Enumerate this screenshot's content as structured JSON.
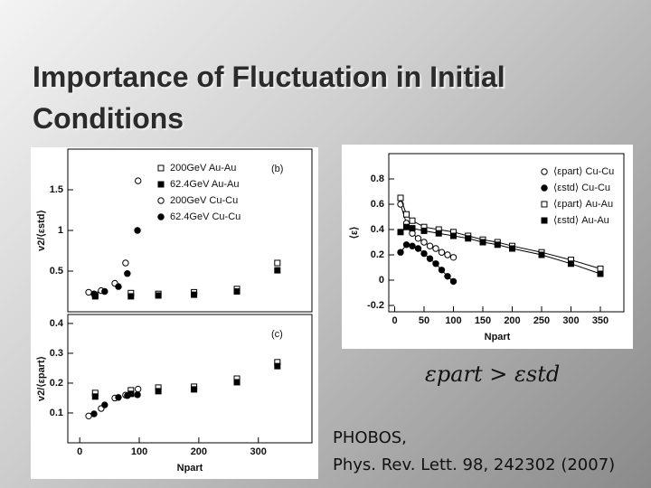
{
  "slide": {
    "title": "Importance of Fluctuation in Initial Conditions",
    "formula": "εpart > εstd",
    "citation": [
      "PHOBOS,",
      "Phys. Rev. Lett. 98, 242302 (2007)"
    ]
  },
  "chart_data": [
    {
      "type": "scatter",
      "annotation": "(b)",
      "y_label": "v2/⟨εstd⟩",
      "xlim": [
        -20,
        390
      ],
      "ylim": [
        0,
        2
      ],
      "yticks": [
        0.5,
        1,
        1.5
      ],
      "legend": "upper right",
      "series": [
        {
          "name": "200GeV Au-Au",
          "marker": "square-open",
          "color": "#000000",
          "x": [
            26,
            86,
            132,
            192,
            264,
            332
          ],
          "values": [
            0.21,
            0.23,
            0.22,
            0.24,
            0.28,
            0.6
          ]
        },
        {
          "name": "62.4GeV Au-Au",
          "marker": "square-filled",
          "color": "#000000",
          "x": [
            26,
            86,
            132,
            192,
            264,
            332
          ],
          "values": [
            0.19,
            0.19,
            0.2,
            0.21,
            0.25,
            0.51
          ]
        },
        {
          "name": "200GeV Cu-Cu",
          "marker": "circle-open",
          "color": "#000000",
          "x": [
            15,
            36,
            59,
            77,
            98
          ],
          "values": [
            0.24,
            0.26,
            0.35,
            0.6,
            1.61
          ]
        },
        {
          "name": "62.4GeV Cu-Cu",
          "marker": "circle-filled",
          "color": "#000000",
          "x": [
            24,
            42,
            65,
            80,
            97
          ],
          "values": [
            0.22,
            0.25,
            0.31,
            0.47,
            1.0
          ]
        }
      ]
    },
    {
      "type": "scatter",
      "annotation": "(c)",
      "y_label": "v2/⟨εpart⟩",
      "x_label": "Npart",
      "xlim": [
        -20,
        390
      ],
      "ylim": [
        0,
        0.43
      ],
      "xticks": [
        0,
        100,
        200,
        300
      ],
      "yticks": [
        0.1,
        0.2,
        0.3,
        0.4
      ],
      "series": [
        {
          "marker": "square-open",
          "color": "#000000",
          "x": [
            26,
            86,
            132,
            192,
            264,
            332
          ],
          "values": [
            0.167,
            0.176,
            0.185,
            0.188,
            0.215,
            0.27
          ]
        },
        {
          "marker": "square-filled",
          "color": "#000000",
          "x": [
            26,
            86,
            132,
            192,
            264,
            332
          ],
          "values": [
            0.155,
            0.164,
            0.173,
            0.179,
            0.203,
            0.257
          ]
        },
        {
          "marker": "circle-open",
          "color": "#000000",
          "x": [
            15,
            36,
            59,
            77,
            98
          ],
          "values": [
            0.09,
            0.115,
            0.15,
            0.16,
            0.18
          ]
        },
        {
          "marker": "circle-filled",
          "color": "#000000",
          "x": [
            24,
            42,
            65,
            80,
            97
          ],
          "values": [
            0.097,
            0.127,
            0.152,
            0.158,
            0.161
          ]
        }
      ]
    },
    {
      "type": "line",
      "y_label": "⟨ε⟩",
      "x_label": "Npart",
      "xlim": [
        -10,
        390
      ],
      "ylim": [
        -0.25,
        1.0
      ],
      "xticks": [
        0,
        50,
        100,
        150,
        200,
        250,
        300,
        350
      ],
      "yticks": [
        -0.2,
        0,
        0.2,
        0.4,
        0.6,
        0.8
      ],
      "legend": "upper right",
      "series": [
        {
          "name": "⟨εpart⟩ Cu-Cu",
          "marker": "circle-open",
          "color": "#000000",
          "x": [
            10,
            20,
            30,
            40,
            50,
            60,
            70,
            80,
            90,
            100
          ],
          "values": [
            0.6,
            0.45,
            0.37,
            0.33,
            0.3,
            0.27,
            0.25,
            0.22,
            0.2,
            0.18
          ]
        },
        {
          "name": "⟨εstd⟩ Cu-Cu",
          "marker": "circle-filled",
          "color": "#000000",
          "x": [
            10,
            20,
            30,
            40,
            50,
            60,
            70,
            80,
            90,
            100
          ],
          "values": [
            0.22,
            0.28,
            0.27,
            0.25,
            0.21,
            0.17,
            0.13,
            0.08,
            0.03,
            -0.01
          ]
        },
        {
          "name": "⟨εpart⟩ Au-Au",
          "marker": "square-open",
          "color": "#000000",
          "x": [
            10,
            20,
            30,
            50,
            75,
            100,
            125,
            150,
            175,
            200,
            250,
            300,
            350
          ],
          "values": [
            0.65,
            0.52,
            0.47,
            0.42,
            0.4,
            0.38,
            0.35,
            0.32,
            0.3,
            0.27,
            0.22,
            0.16,
            0.09
          ]
        },
        {
          "name": "⟨εstd⟩ Au-Au",
          "marker": "square-filled",
          "color": "#000000",
          "x": [
            10,
            20,
            30,
            50,
            75,
            100,
            125,
            150,
            175,
            200,
            250,
            300,
            350
          ],
          "values": [
            0.38,
            0.42,
            0.41,
            0.39,
            0.37,
            0.35,
            0.33,
            0.3,
            0.28,
            0.25,
            0.2,
            0.13,
            0.05
          ]
        }
      ]
    }
  ]
}
